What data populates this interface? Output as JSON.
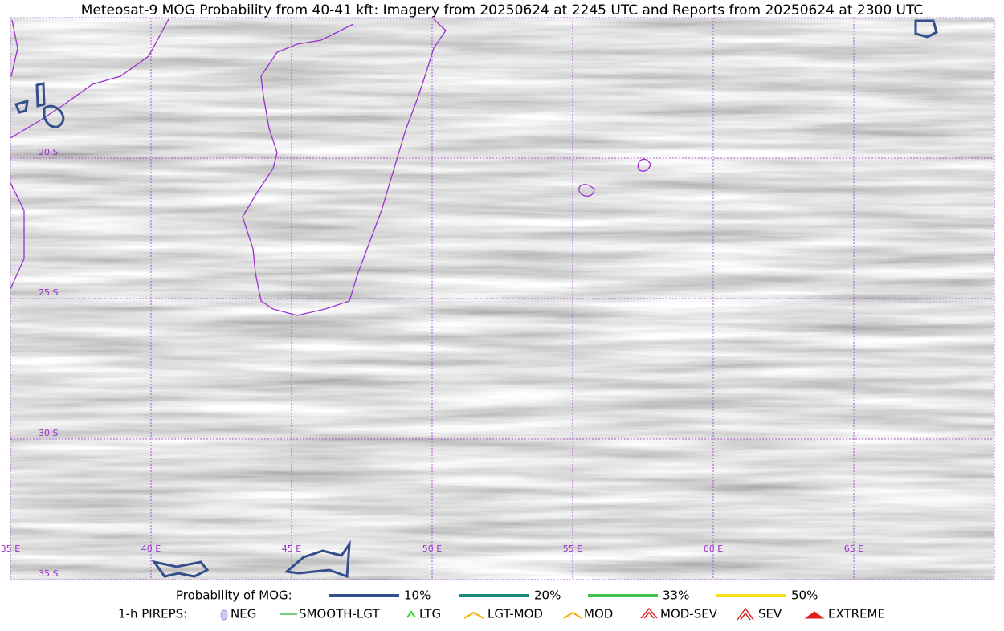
{
  "title": "Meteosat-9 MOG Probability from 40-41 kft: Imagery from 20250624 at 2245 UTC and Reports from 20250624 at 2300 UTC",
  "map": {
    "lat_labels": [
      "20 S",
      "25 S",
      "30 S",
      "35 S"
    ],
    "lon_labels": [
      "35 E",
      "40 E",
      "45 E",
      "50 E",
      "55 E",
      "60 E",
      "65 E"
    ]
  },
  "legend": {
    "probability": {
      "label": "Probability of MOG:",
      "items": [
        {
          "label": "10%",
          "color": "#354f8c"
        },
        {
          "label": "20%",
          "color": "#1a8a80"
        },
        {
          "label": "33%",
          "color": "#44c04c"
        },
        {
          "label": "50%",
          "color": "#f5e11a"
        }
      ]
    },
    "pireps": {
      "label": "1-h PIREPS:",
      "items": [
        "NEG",
        "SMOOTH-LGT",
        "LTG",
        "LGT-MOD",
        "MOD",
        "MOD-SEV",
        "SEV",
        "EXTREME"
      ]
    }
  }
}
